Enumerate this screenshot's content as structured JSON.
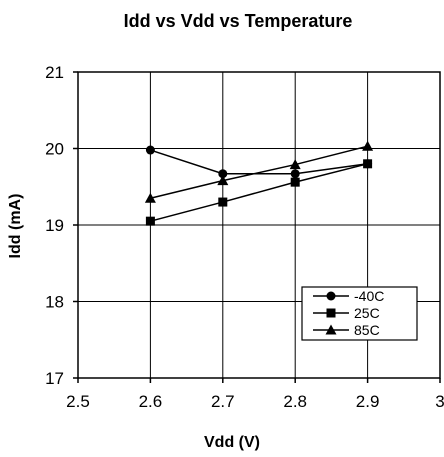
{
  "chart_data": {
    "type": "line",
    "title": "Idd vs Vdd vs Temperature",
    "xlabel": "Vdd (V)",
    "ylabel": "Idd (mA)",
    "xlim": [
      2.5,
      3.0
    ],
    "ylim": [
      17,
      21
    ],
    "x_ticks": [
      2.5,
      2.6,
      2.7,
      2.8,
      2.9,
      3
    ],
    "x_tick_labels": [
      "2.5",
      "2.6",
      "2.7",
      "2.8",
      "2.9",
      "3"
    ],
    "y_ticks": [
      17,
      18,
      19,
      20,
      21
    ],
    "y_tick_labels": [
      "17",
      "18",
      "19",
      "20",
      "21"
    ],
    "grid": true,
    "legend_position": "bottom-right",
    "x": [
      2.6,
      2.7,
      2.8,
      2.9
    ],
    "series": [
      {
        "name": "-40C",
        "marker": "circle",
        "values": [
          19.98,
          19.67,
          19.67,
          19.8
        ]
      },
      {
        "name": "25C",
        "marker": "square",
        "values": [
          19.05,
          19.3,
          19.56,
          19.8
        ]
      },
      {
        "name": "85C",
        "marker": "triangle",
        "values": [
          19.35,
          19.58,
          19.79,
          20.03
        ]
      }
    ],
    "colors": {
      "line": "#000000",
      "marker": "#000000",
      "background": "#ffffff"
    }
  }
}
